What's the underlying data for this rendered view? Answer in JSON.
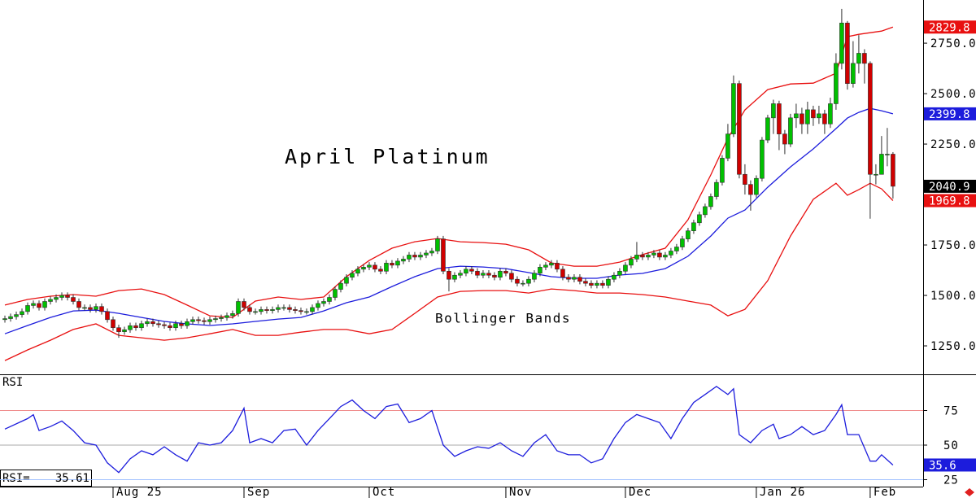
{
  "chart_data": [
    {
      "type": "candlestick",
      "title": "April Platinum",
      "annotation": "Bollinger Bands",
      "xlim": [
        -0.86,
        161.3
      ],
      "ylim": [
        1109,
        2964
      ],
      "yticks": [
        {
          "value": 1250,
          "label": "1250.0"
        },
        {
          "value": 1500,
          "label": "1500.0"
        },
        {
          "value": 1750,
          "label": "1750.0"
        },
        {
          "value": 2250,
          "label": "2250.0"
        },
        {
          "value": 2500,
          "label": "2500.0"
        },
        {
          "value": 2750,
          "label": "2750.0"
        }
      ],
      "up_color": "#00c000",
      "down_color": "#d00000",
      "close_label_color": "#000000",
      "open": [
        1380,
        1385,
        1395,
        1405,
        1420,
        1450,
        1460,
        1440,
        1470,
        1480,
        1490,
        1500,
        1490,
        1470,
        1440,
        1440,
        1430,
        1445,
        1420,
        1380,
        1340,
        1320,
        1330,
        1350,
        1340,
        1360,
        1370,
        1360,
        1355,
        1350,
        1340,
        1360,
        1350,
        1370,
        1380,
        1375,
        1370,
        1380,
        1385,
        1390,
        1400,
        1410,
        1470,
        1440,
        1420,
        1420,
        1430,
        1425,
        1430,
        1440,
        1440,
        1430,
        1425,
        1420,
        1420,
        1440,
        1460,
        1470,
        1490,
        1530,
        1560,
        1590,
        1610,
        1630,
        1640,
        1650,
        1630,
        1620,
        1660,
        1650,
        1670,
        1680,
        1700,
        1690,
        1700,
        1710,
        1720,
        1780,
        1620,
        1580,
        1600,
        1610,
        1630,
        1620,
        1600,
        1610,
        1600,
        1590,
        1620,
        1610,
        1580,
        1560,
        1560,
        1580,
        1610,
        1640,
        1650,
        1660,
        1630,
        1590,
        1580,
        1590,
        1570,
        1560,
        1550,
        1560,
        1550,
        1580,
        1600,
        1620,
        1650,
        1680,
        1700,
        1690,
        1700,
        1710,
        1690,
        1700,
        1720,
        1740,
        1780,
        1820,
        1860,
        1900,
        1940,
        1990,
        2060,
        2180,
        2300,
        2550,
        2100,
        2050,
        2000,
        2080,
        2270,
        2380,
        2450,
        2300,
        2250,
        2380,
        2400,
        2350,
        2420,
        2380,
        2400,
        2350,
        2450,
        2650,
        2850,
        2550,
        2650,
        2700,
        2650,
        2100,
        2100,
        2200,
        2200
      ],
      "high": [
        1400,
        1410,
        1420,
        1435,
        1465,
        1475,
        1475,
        1485,
        1495,
        1505,
        1515,
        1515,
        1505,
        1485,
        1455,
        1455,
        1460,
        1460,
        1435,
        1395,
        1355,
        1345,
        1365,
        1365,
        1375,
        1385,
        1385,
        1375,
        1370,
        1365,
        1375,
        1375,
        1385,
        1395,
        1395,
        1390,
        1395,
        1400,
        1405,
        1415,
        1425,
        1485,
        1485,
        1455,
        1435,
        1445,
        1445,
        1445,
        1455,
        1455,
        1455,
        1445,
        1440,
        1435,
        1455,
        1475,
        1485,
        1505,
        1545,
        1575,
        1605,
        1625,
        1645,
        1655,
        1665,
        1665,
        1645,
        1675,
        1675,
        1685,
        1695,
        1715,
        1715,
        1715,
        1725,
        1735,
        1795,
        1795,
        1635,
        1615,
        1625,
        1645,
        1645,
        1635,
        1625,
        1625,
        1615,
        1635,
        1635,
        1625,
        1595,
        1575,
        1595,
        1625,
        1655,
        1665,
        1675,
        1675,
        1645,
        1605,
        1605,
        1605,
        1585,
        1575,
        1575,
        1575,
        1595,
        1615,
        1635,
        1665,
        1695,
        1765,
        1715,
        1715,
        1725,
        1725,
        1715,
        1735,
        1755,
        1795,
        1835,
        1875,
        1915,
        1955,
        2005,
        2075,
        2195,
        2350,
        2590,
        2565,
        2150,
        2070,
        2095,
        2285,
        2395,
        2470,
        2465,
        2320,
        2400,
        2450,
        2430,
        2460,
        2440,
        2440,
        2420,
        2480,
        2700,
        2920,
        2860,
        2760,
        2790,
        2720,
        2660,
        2150,
        2290,
        2330,
        2210
      ],
      "low": [
        1365,
        1370,
        1380,
        1390,
        1405,
        1435,
        1425,
        1425,
        1455,
        1465,
        1475,
        1475,
        1455,
        1425,
        1425,
        1415,
        1415,
        1405,
        1365,
        1325,
        1290,
        1305,
        1315,
        1325,
        1325,
        1345,
        1345,
        1340,
        1335,
        1325,
        1325,
        1335,
        1335,
        1355,
        1360,
        1355,
        1355,
        1365,
        1370,
        1375,
        1385,
        1395,
        1425,
        1405,
        1405,
        1405,
        1410,
        1410,
        1415,
        1425,
        1415,
        1410,
        1405,
        1405,
        1405,
        1425,
        1445,
        1455,
        1475,
        1515,
        1545,
        1575,
        1595,
        1615,
        1625,
        1615,
        1605,
        1605,
        1635,
        1635,
        1655,
        1665,
        1675,
        1675,
        1685,
        1695,
        1705,
        1605,
        1520,
        1565,
        1585,
        1595,
        1605,
        1585,
        1585,
        1585,
        1575,
        1575,
        1595,
        1565,
        1545,
        1545,
        1545,
        1565,
        1595,
        1625,
        1635,
        1615,
        1575,
        1565,
        1565,
        1555,
        1545,
        1535,
        1535,
        1535,
        1535,
        1565,
        1585,
        1605,
        1635,
        1665,
        1675,
        1675,
        1685,
        1675,
        1675,
        1685,
        1705,
        1725,
        1765,
        1805,
        1845,
        1885,
        1925,
        1975,
        2045,
        2165,
        2285,
        2080,
        2000,
        1920,
        1985,
        2065,
        2255,
        2300,
        2220,
        2200,
        2235,
        2330,
        2300,
        2300,
        2340,
        2350,
        2300,
        2330,
        2420,
        2620,
        2520,
        2530,
        2600,
        2550,
        1880,
        2050,
        2100,
        2140,
        1980
      ],
      "close": [
        1385,
        1395,
        1405,
        1420,
        1450,
        1460,
        1440,
        1470,
        1480,
        1490,
        1500,
        1490,
        1470,
        1440,
        1440,
        1430,
        1445,
        1420,
        1380,
        1340,
        1320,
        1330,
        1350,
        1340,
        1360,
        1370,
        1360,
        1355,
        1350,
        1340,
        1360,
        1350,
        1370,
        1380,
        1375,
        1370,
        1380,
        1385,
        1390,
        1400,
        1410,
        1470,
        1440,
        1420,
        1420,
        1430,
        1425,
        1430,
        1440,
        1440,
        1430,
        1425,
        1420,
        1420,
        1440,
        1460,
        1470,
        1490,
        1530,
        1560,
        1590,
        1610,
        1630,
        1640,
        1650,
        1630,
        1620,
        1660,
        1650,
        1670,
        1680,
        1700,
        1690,
        1700,
        1710,
        1720,
        1780,
        1620,
        1580,
        1600,
        1610,
        1630,
        1620,
        1600,
        1610,
        1600,
        1590,
        1620,
        1610,
        1580,
        1560,
        1560,
        1580,
        1610,
        1640,
        1650,
        1660,
        1630,
        1590,
        1580,
        1590,
        1570,
        1560,
        1550,
        1560,
        1550,
        1580,
        1600,
        1620,
        1650,
        1680,
        1700,
        1690,
        1700,
        1710,
        1690,
        1700,
        1720,
        1740,
        1780,
        1820,
        1860,
        1900,
        1940,
        1990,
        2060,
        2180,
        2300,
        2550,
        2100,
        2050,
        2000,
        2080,
        2270,
        2380,
        2450,
        2300,
        2250,
        2380,
        2400,
        2350,
        2420,
        2380,
        2400,
        2350,
        2450,
        2650,
        2850,
        2550,
        2650,
        2700,
        2650,
        2100,
        2100,
        2200,
        2200,
        2040.9
      ],
      "series": [
        {
          "color": "#e81010",
          "label_last": true,
          "x": [
            0,
            4,
            8,
            12,
            16,
            20,
            24,
            28,
            32,
            36,
            40,
            44,
            48,
            52,
            56,
            60,
            64,
            68,
            72,
            76,
            80,
            84,
            88,
            92,
            96,
            100,
            104,
            108,
            112,
            116,
            120,
            124,
            127,
            130,
            134,
            138,
            142,
            146,
            148,
            150,
            152,
            154,
            156
          ],
          "values": [
            1452,
            1480,
            1496,
            1504,
            1496,
            1524,
            1532,
            1504,
            1452,
            1399,
            1391,
            1472,
            1492,
            1480,
            1492,
            1593,
            1673,
            1734,
            1766,
            1782,
            1766,
            1762,
            1754,
            1726,
            1661,
            1645,
            1645,
            1665,
            1702,
            1734,
            1875,
            2097,
            2278,
            2419,
            2520,
            2548,
            2552,
            2601,
            2782,
            2794,
            2802,
            2810,
            2829.8
          ]
        },
        {
          "color": "#1c1cdc",
          "label_last": true,
          "x": [
            0,
            4,
            8,
            12,
            16,
            20,
            24,
            28,
            32,
            36,
            40,
            44,
            48,
            52,
            56,
            60,
            64,
            68,
            72,
            76,
            80,
            84,
            88,
            92,
            96,
            100,
            104,
            108,
            112,
            116,
            120,
            124,
            127,
            130,
            134,
            138,
            142,
            146,
            148,
            150,
            152,
            154,
            156
          ],
          "values": [
            1310,
            1351,
            1391,
            1423,
            1427,
            1411,
            1391,
            1371,
            1359,
            1351,
            1359,
            1371,
            1383,
            1391,
            1423,
            1464,
            1492,
            1544,
            1593,
            1633,
            1645,
            1641,
            1633,
            1613,
            1593,
            1585,
            1585,
            1601,
            1609,
            1633,
            1694,
            1794,
            1883,
            1923,
            2036,
            2137,
            2226,
            2327,
            2379,
            2407,
            2427,
            2415,
            2399.8
          ]
        },
        {
          "color": "#e81010",
          "label_last": true,
          "x": [
            0,
            4,
            8,
            12,
            16,
            20,
            24,
            28,
            32,
            36,
            40,
            44,
            48,
            52,
            56,
            60,
            64,
            68,
            72,
            76,
            80,
            84,
            88,
            92,
            96,
            100,
            104,
            108,
            112,
            116,
            120,
            124,
            127,
            130,
            134,
            138,
            142,
            146,
            148,
            150,
            152,
            154,
            156
          ],
          "values": [
            1177,
            1230,
            1278,
            1331,
            1359,
            1302,
            1290,
            1278,
            1290,
            1310,
            1331,
            1302,
            1302,
            1318,
            1331,
            1331,
            1310,
            1331,
            1411,
            1492,
            1520,
            1524,
            1524,
            1512,
            1532,
            1524,
            1512,
            1512,
            1504,
            1492,
            1472,
            1452,
            1399,
            1431,
            1573,
            1794,
            1976,
            2056,
            1996,
            2024,
            2056,
            2028,
            1969.8
          ]
        }
      ]
    },
    {
      "type": "line",
      "title": "RSI",
      "readout": "RSI=",
      "last_value_label": "35.6",
      "xlim": [
        -0.86,
        161.3
      ],
      "ylim": [
        20,
        100
      ],
      "yticks": [
        25,
        50,
        75
      ],
      "level_colors": [
        "#9fc0ff",
        "#a8a8a8",
        "#f08a8a"
      ],
      "xticks": [
        {
          "value": 19,
          "label": "Aug 25"
        },
        {
          "value": 42,
          "label": "Sep"
        },
        {
          "value": 64,
          "label": "Oct"
        },
        {
          "value": 88,
          "label": "Nov"
        },
        {
          "value": 109,
          "label": "Dec"
        },
        {
          "value": 132,
          "label": "Jan 26"
        },
        {
          "value": 152,
          "label": "Feb"
        }
      ],
      "series": [
        {
          "color": "#1c1cdc",
          "x": [
            0,
            4,
            5,
            6,
            8,
            10,
            12,
            14,
            16,
            18,
            20,
            22,
            24,
            26,
            28,
            30,
            32,
            34,
            36,
            38,
            40,
            42,
            43,
            45,
            47,
            49,
            51,
            53,
            55,
            57,
            59,
            61,
            63,
            65,
            67,
            69,
            71,
            73,
            75,
            77,
            79,
            81,
            83,
            85,
            87,
            89,
            91,
            93,
            95,
            97,
            99,
            101,
            103,
            105,
            107,
            109,
            111,
            113,
            115,
            117,
            119,
            121,
            123,
            125,
            127,
            128,
            129,
            131,
            133,
            135,
            136,
            138,
            140,
            142,
            144,
            146,
            147,
            148,
            150,
            152,
            153,
            154,
            156
          ],
          "values": [
            61.6,
            69.2,
            72,
            60.5,
            63.4,
            67.4,
            60.5,
            51.7,
            50,
            37.2,
            30.2,
            40.1,
            45.9,
            43,
            48.8,
            43,
            38.4,
            51.7,
            50,
            51.7,
            60.5,
            76.7,
            51.7,
            54.7,
            51.7,
            60.5,
            61.6,
            50,
            60.5,
            69.2,
            77.9,
            82.6,
            75,
            69.2,
            77.9,
            79.7,
            66.3,
            69.2,
            75,
            50,
            41.9,
            45.9,
            48.8,
            47.7,
            51.7,
            45.9,
            41.9,
            51.7,
            57.6,
            45.9,
            43,
            43,
            37.2,
            40.1,
            54.7,
            66.3,
            72.1,
            69.2,
            66.3,
            54.7,
            69.2,
            80.8,
            86.6,
            92.4,
            86.6,
            90.7,
            57.6,
            51.7,
            60.5,
            65.1,
            54.7,
            57.6,
            63.4,
            57.6,
            60.5,
            72.1,
            79.1,
            57.6,
            57.6,
            38.4,
            38.4,
            43,
            35.61
          ]
        }
      ]
    }
  ]
}
